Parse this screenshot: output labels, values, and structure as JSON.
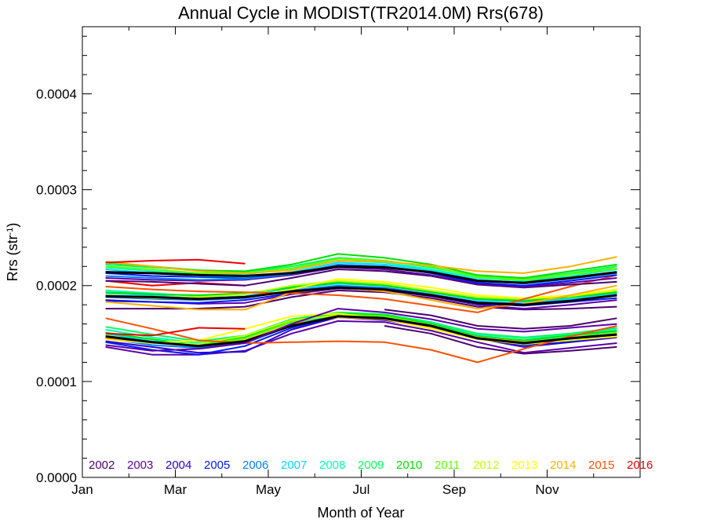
{
  "chart_data": {
    "type": "line",
    "title": "Annual Cycle in MODIST(TR2014.0M) Rrs(678)",
    "xlabel": "Month of Year",
    "ylabel_base": "Rrs (str",
    "ylabel_sup": "-1",
    "ylabel_end": ")",
    "xlim": [
      0,
      12
    ],
    "ylim": [
      0,
      0.00047
    ],
    "x_ticks": [
      {
        "value": 0,
        "label": "Jan"
      },
      {
        "value": 2,
        "label": "Mar"
      },
      {
        "value": 4,
        "label": "May"
      },
      {
        "value": 6,
        "label": "Jul"
      },
      {
        "value": 8,
        "label": "Sep"
      },
      {
        "value": 10,
        "label": "Nov"
      }
    ],
    "y_ticks": [
      {
        "value": 0,
        "label": "0.0000"
      },
      {
        "value": 0.0001,
        "label": "0.0001"
      },
      {
        "value": 0.0002,
        "label": "0.0002"
      },
      {
        "value": 0.0003,
        "label": "0.0003"
      },
      {
        "value": 0.0004,
        "label": "0.0004"
      }
    ],
    "x": [
      0.5,
      1.5,
      2.5,
      3.5,
      4.5,
      5.5,
      6.5,
      7.5,
      8.5,
      9.5,
      10.5,
      11.5
    ],
    "grid": false,
    "legend_position": "bottom",
    "series": [
      {
        "name": "2002",
        "color": "#4b0070",
        "values": [
          null,
          null,
          null,
          null,
          null,
          null,
          0.000158,
          0.00015,
          0.000136,
          0.000129,
          0.000132,
          0.000136
        ]
      },
      {
        "name": "2003",
        "color": "#5a00a8",
        "values": [
          0.000136,
          0.000128,
          0.000128,
          0.000132,
          0.00015,
          0.000163,
          0.000162,
          0.000153,
          0.000141,
          0.00013,
          0.000135,
          0.00014
        ]
      },
      {
        "name": "2004",
        "color": "#2a00d4",
        "values": [
          0.000142,
          0.000136,
          0.00013,
          0.000131,
          0.000154,
          0.000167,
          0.000164,
          0.000157,
          0.000145,
          0.000136,
          0.000141,
          0.000146
        ]
      },
      {
        "name": "2005",
        "color": "#0018ff",
        "values": [
          0.000141,
          0.000133,
          0.000128,
          0.000137,
          0.000156,
          0.000168,
          0.000166,
          0.000159,
          0.000146,
          0.000138,
          0.000142,
          0.000148
        ]
      },
      {
        "name": "2006",
        "color": "#0080ff",
        "values": [
          0.000145,
          0.000138,
          0.000135,
          0.00014,
          0.000158,
          0.000169,
          0.000167,
          0.00016,
          0.000147,
          0.00014,
          0.000144,
          0.000149
        ]
      },
      {
        "name": "2007",
        "color": "#00d8ff",
        "values": [
          0.00015,
          0.000142,
          0.000138,
          0.000143,
          0.00016,
          0.00017,
          0.000169,
          0.000161,
          0.000148,
          0.000142,
          0.000146,
          0.000152
        ]
      },
      {
        "name": "2008",
        "color": "#00ffb0",
        "values": [
          0.000154,
          0.000146,
          0.00014,
          0.000146,
          0.000163,
          0.000172,
          0.00017,
          0.000162,
          0.000149,
          0.000145,
          0.000149,
          0.000155
        ]
      },
      {
        "name": "2009",
        "color": "#00ff60",
        "values": [
          0.000157,
          0.000149,
          0.000142,
          0.000148,
          0.000165,
          0.000172,
          0.00017,
          0.000162,
          0.00015,
          0.000146,
          0.00015,
          0.000156
        ]
      },
      {
        "name": "2010",
        "color": "#00e000",
        "values": [
          0.000151,
          0.000144,
          0.000138,
          0.000146,
          0.000163,
          0.000171,
          0.000169,
          0.00016,
          0.000147,
          0.000143,
          0.000148,
          0.000153
        ]
      },
      {
        "name": "2011",
        "color": "#60ff00",
        "values": [
          0.000148,
          0.000141,
          0.000137,
          0.000145,
          0.000162,
          0.00017,
          0.000168,
          0.000159,
          0.000146,
          0.000141,
          0.000146,
          0.000151
        ]
      },
      {
        "name": "2012",
        "color": "#c0ff00",
        "values": [
          0.000146,
          0.00014,
          0.000139,
          0.000148,
          0.000164,
          0.000169,
          0.000166,
          0.000157,
          0.000145,
          0.00014,
          0.000145,
          0.00015
        ]
      },
      {
        "name": "2013",
        "color": "#ffff00",
        "values": [
          0.000144,
          0.00014,
          0.000143,
          0.000155,
          0.000168,
          0.000171,
          0.000165,
          0.000155,
          0.000144,
          0.000139,
          0.000143,
          0.000147
        ]
      },
      {
        "name": "2014",
        "color": "#ffb000",
        "values": [
          0.000145,
          0.000141,
          0.000137,
          0.000143,
          0.00016,
          0.000167,
          0.000165,
          0.000157,
          0.000146,
          0.000141,
          0.000145,
          0.000149
        ]
      },
      {
        "name": "2015",
        "color": "#ff5000",
        "values": [
          0.000166,
          0.000155,
          0.000143,
          0.00014,
          0.000141,
          0.000142,
          0.000141,
          0.000133,
          0.00012,
          0.000134,
          0.000147,
          0.000158
        ]
      },
      {
        "name": "2016",
        "color": "#ee0000",
        "values": [
          0.00015,
          0.000148,
          0.000156,
          0.000155,
          null,
          null,
          null,
          null,
          null,
          null,
          null,
          null
        ]
      },
      {
        "name": "",
        "color": "#000000",
        "width": 3,
        "values": [
          0.000147,
          0.000141,
          0.000137,
          0.000142,
          0.000158,
          0.000168,
          0.000166,
          0.000158,
          0.000145,
          0.00014,
          0.000145,
          0.000149
        ]
      },
      {
        "name": "",
        "color": "#4b0070",
        "values": [
          null,
          null,
          null,
          null,
          null,
          null,
          0.000175,
          0.000169,
          0.000158,
          0.000155,
          0.000158,
          0.000166
        ]
      },
      {
        "name": "",
        "color": "#5a00a8",
        "values": [
          0.000138,
          0.000132,
          0.000134,
          0.00014,
          0.00016,
          0.000176,
          0.000172,
          0.000165,
          0.000155,
          0.000152,
          0.000156,
          0.00016
        ]
      },
      {
        "name": "",
        "color": "#4b0070",
        "values": [
          0.000176,
          0.000176,
          0.000176,
          0.000178,
          0.000188,
          0.000195,
          0.000193,
          0.000187,
          0.000178,
          0.000175,
          0.000176,
          0.000178
        ]
      },
      {
        "name": "",
        "color": "#5a00a8",
        "values": [
          0.000185,
          0.000183,
          0.000181,
          0.000182,
          0.000191,
          0.000197,
          0.000195,
          0.000189,
          0.00018,
          0.000176,
          0.00018,
          0.000185
        ]
      },
      {
        "name": "",
        "color": "#0018ff",
        "values": [
          0.000184,
          0.000183,
          0.000182,
          0.000185,
          0.000192,
          0.000199,
          0.000196,
          0.00019,
          0.000181,
          0.000179,
          0.000183,
          0.000187
        ]
      },
      {
        "name": "",
        "color": "#0080ff",
        "values": [
          0.000188,
          0.000186,
          0.000185,
          0.000187,
          0.000195,
          0.0002,
          0.000198,
          0.000191,
          0.000183,
          0.000181,
          0.000185,
          0.00019
        ]
      },
      {
        "name": "",
        "color": "#00d8ff",
        "values": [
          0.000192,
          0.00019,
          0.000187,
          0.000189,
          0.000197,
          0.000202,
          0.0002,
          0.000193,
          0.000185,
          0.000183,
          0.000186,
          0.000192
        ]
      },
      {
        "name": "",
        "color": "#00ffb0",
        "values": [
          0.000195,
          0.000192,
          0.000189,
          0.000191,
          0.000199,
          0.000204,
          0.000201,
          0.000194,
          0.000187,
          0.000185,
          0.000188,
          0.000194
        ]
      },
      {
        "name": "",
        "color": "#00e000",
        "values": [
          0.000193,
          0.000191,
          0.00019,
          0.000192,
          0.000198,
          0.000203,
          0.0002,
          0.000193,
          0.000186,
          0.000184,
          0.000188,
          0.000193
        ]
      },
      {
        "name": "",
        "color": "#c0ff00",
        "values": [
          0.00019,
          0.000188,
          0.000188,
          0.000191,
          0.0002,
          0.000205,
          0.000202,
          0.000195,
          0.000188,
          0.000186,
          0.000189,
          0.000195
        ]
      },
      {
        "name": "",
        "color": "#ffff00",
        "values": [
          0.000189,
          0.000187,
          0.000186,
          0.000188,
          0.000196,
          0.000207,
          0.000204,
          0.000198,
          0.00019,
          0.000187,
          0.00019,
          0.000196
        ]
      },
      {
        "name": "",
        "color": "#ffb000",
        "values": [
          0.000183,
          0.000179,
          0.000175,
          0.000175,
          0.000193,
          0.000198,
          0.000194,
          0.000185,
          0.000176,
          0.000181,
          0.00019,
          0.0002
        ]
      },
      {
        "name": "",
        "color": "#ff5000",
        "values": [
          0.000199,
          0.000196,
          0.000194,
          0.000193,
          0.000192,
          0.00019,
          0.000186,
          0.000179,
          0.000172,
          0.000186,
          0.000199,
          0.000211
        ]
      },
      {
        "name": "",
        "color": "#ee0000",
        "values": [
          0.000205,
          0.0002,
          0.000203,
          0.0002,
          null,
          null,
          null,
          null,
          null,
          null,
          null,
          null
        ]
      },
      {
        "name": "",
        "color": "#000000",
        "width": 3,
        "values": [
          0.000189,
          0.000188,
          0.000186,
          0.000188,
          0.000194,
          0.000198,
          0.000196,
          0.00019,
          0.000182,
          0.00018,
          0.000184,
          0.00019
        ]
      },
      {
        "name": "",
        "color": "#4b0070",
        "values": [
          0.000205,
          0.000204,
          0.000202,
          0.0002,
          0.000208,
          0.000217,
          0.000215,
          0.00021,
          0.000201,
          0.000198,
          0.000201,
          0.000204
        ]
      },
      {
        "name": "",
        "color": "#5a00a8",
        "values": [
          0.000208,
          0.000206,
          0.000205,
          0.000206,
          0.000211,
          0.000219,
          0.000217,
          0.000211,
          0.000202,
          0.000199,
          0.000203,
          0.000208
        ]
      },
      {
        "name": "",
        "color": "#0018ff",
        "values": [
          0.000213,
          0.00021,
          0.000209,
          0.000208,
          0.000213,
          0.000221,
          0.00022,
          0.000213,
          0.000203,
          0.0002,
          0.000205,
          0.000211
        ]
      },
      {
        "name": "",
        "color": "#0080ff",
        "values": [
          0.00021,
          0.000208,
          0.000206,
          0.000207,
          0.000212,
          0.000222,
          0.00022,
          0.000214,
          0.000205,
          0.000202,
          0.000207,
          0.000213
        ]
      },
      {
        "name": "",
        "color": "#00d8ff",
        "values": [
          0.000217,
          0.000213,
          0.00021,
          0.000209,
          0.000214,
          0.000224,
          0.000222,
          0.000216,
          0.000206,
          0.000203,
          0.000208,
          0.000214
        ]
      },
      {
        "name": "",
        "color": "#00ffb0",
        "values": [
          0.000219,
          0.000215,
          0.000212,
          0.000212,
          0.000217,
          0.000226,
          0.000224,
          0.000217,
          0.000208,
          0.000205,
          0.00021,
          0.000217
        ]
      },
      {
        "name": "",
        "color": "#00ff60",
        "values": [
          0.000222,
          0.000219,
          0.000216,
          0.000214,
          0.00022,
          0.000229,
          0.000226,
          0.000219,
          0.00021,
          0.000207,
          0.000213,
          0.00022
        ]
      },
      {
        "name": "",
        "color": "#00e000",
        "values": [
          0.000224,
          0.00022,
          0.000216,
          0.000215,
          0.000222,
          0.000233,
          0.000229,
          0.000222,
          0.000211,
          0.000208,
          0.000215,
          0.000222
        ]
      },
      {
        "name": "",
        "color": "#60ff00",
        "values": [
          0.00022,
          0.000217,
          0.000213,
          0.000213,
          0.000218,
          0.000228,
          0.000226,
          0.00022,
          0.000209,
          0.000206,
          0.000212,
          0.000218
        ]
      },
      {
        "name": "",
        "color": "#ffb000",
        "values": [
          0.000225,
          0.00022,
          0.000215,
          0.000213,
          0.000216,
          0.000226,
          0.000225,
          0.000221,
          0.000215,
          0.000213,
          0.00022,
          0.00023
        ]
      },
      {
        "name": "",
        "color": "#ee0000",
        "values": [
          0.000224,
          0.000226,
          0.000227,
          0.000223,
          null,
          null,
          null,
          null,
          null,
          null,
          null,
          null
        ]
      },
      {
        "name": "",
        "color": "#000000",
        "width": 3,
        "values": [
          0.000214,
          0.000213,
          0.000211,
          0.00021,
          0.000213,
          0.00022,
          0.000219,
          0.000214,
          0.000205,
          0.000203,
          0.000208,
          0.000214
        ]
      }
    ]
  }
}
